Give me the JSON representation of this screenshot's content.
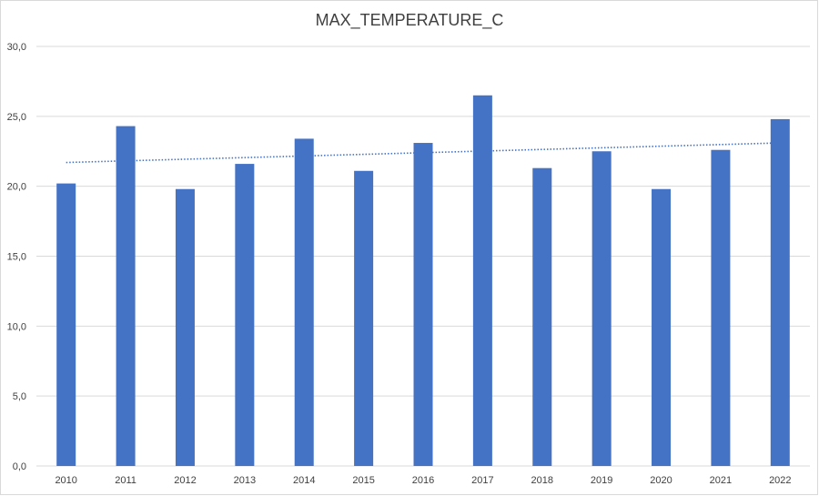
{
  "chart_data": {
    "type": "bar",
    "title": "MAX_TEMPERATURE_C",
    "categories": [
      "2010",
      "2011",
      "2012",
      "2013",
      "2014",
      "2015",
      "2016",
      "2017",
      "2018",
      "2019",
      "2020",
      "2021",
      "2022"
    ],
    "series": [
      {
        "values": [
          20.2,
          24.3,
          19.8,
          21.6,
          23.4,
          21.1,
          23.1,
          26.5,
          21.3,
          22.5,
          19.8,
          22.6,
          24.8
        ]
      }
    ],
    "trendline": {
      "type": "linear",
      "style": "dotted",
      "start": 21.7,
      "end": 23.1
    },
    "ylim": [
      0,
      30
    ],
    "yticks": [
      "0,0",
      "5,0",
      "10,0",
      "15,0",
      "20,0",
      "25,0",
      "30,0"
    ],
    "grid": true,
    "legend": "none",
    "colors": {
      "bar": "#4472c4",
      "trend": "#4472c4",
      "grid": "#d9d9d9",
      "text": "#404040"
    }
  }
}
